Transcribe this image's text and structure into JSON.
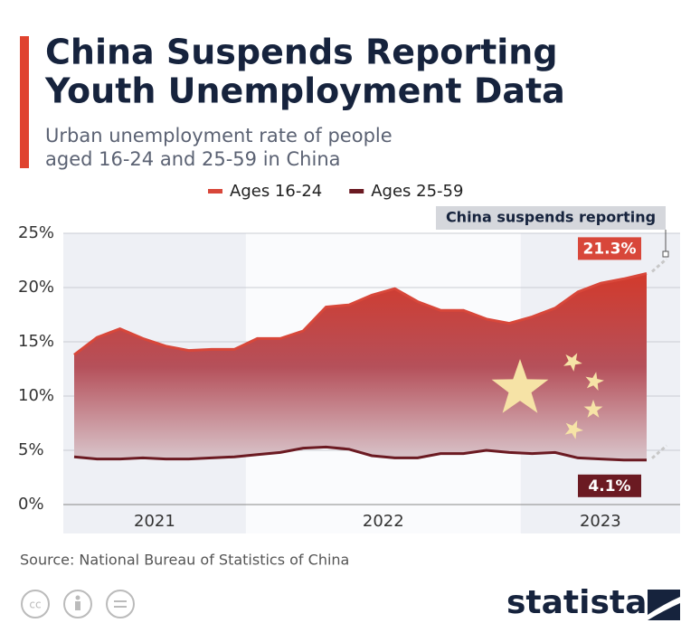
{
  "chart_data": {
    "type": "area",
    "title": [
      "China Suspends Reporting",
      "Youth Unemployment Data"
    ],
    "subtitle": [
      "Urban unemployment rate of people",
      "aged 16-24 and 25-59 in China"
    ],
    "categories": [
      null,
      null,
      null,
      null,
      null,
      null,
      null,
      null,
      null,
      null,
      null,
      null,
      null,
      null,
      null,
      null,
      null,
      null,
      null,
      null,
      null,
      null,
      null,
      null,
      null,
      null
    ],
    "x_groups": [
      {
        "label": "2021",
        "count": 8
      },
      {
        "label": "2022",
        "count": 12
      },
      {
        "label": "2023",
        "count": 6
      }
    ],
    "series": [
      {
        "name": "Ages 16-24",
        "color": "#d8473a",
        "values": [
          13.8,
          15.4,
          16.2,
          15.3,
          14.6,
          14.2,
          14.3,
          14.3,
          15.3,
          15.3,
          16.0,
          18.2,
          18.4,
          19.3,
          19.9,
          18.7,
          17.9,
          17.9,
          17.1,
          16.7,
          17.3,
          18.1,
          19.6,
          20.4,
          20.8,
          21.3
        ],
        "value_labels": [
          null,
          null,
          null,
          null,
          null,
          null,
          null,
          null,
          null,
          null,
          null,
          null,
          null,
          null,
          null,
          null,
          null,
          null,
          null,
          null,
          null,
          null,
          null,
          null,
          null,
          "21.3%"
        ]
      },
      {
        "name": "Ages 25-59",
        "color": "#6b1a22",
        "values": [
          4.4,
          4.2,
          4.2,
          4.3,
          4.2,
          4.2,
          4.3,
          4.4,
          4.6,
          4.8,
          5.2,
          5.3,
          5.1,
          4.5,
          4.3,
          4.3,
          4.7,
          4.7,
          5.0,
          4.8,
          4.7,
          4.8,
          4.3,
          4.2,
          4.1,
          4.1
        ],
        "value_labels": [
          null,
          null,
          null,
          null,
          null,
          null,
          null,
          null,
          null,
          null,
          null,
          null,
          null,
          null,
          null,
          null,
          null,
          null,
          null,
          null,
          null,
          null,
          null,
          null,
          null,
          "4.1%"
        ]
      }
    ],
    "ylim": [
      0,
      25
    ],
    "yticks": [
      {
        "value": 0,
        "label": "0%"
      },
      {
        "value": 5,
        "label": "5%"
      },
      {
        "value": 10,
        "label": "10%"
      },
      {
        "value": 15,
        "label": "15%"
      },
      {
        "value": 20,
        "label": "20%"
      },
      {
        "value": 25,
        "label": "25%"
      }
    ],
    "grid": true,
    "annotation": "China suspends reporting",
    "source": "Source: National Bureau of Statistics of China",
    "brand": "statista"
  }
}
